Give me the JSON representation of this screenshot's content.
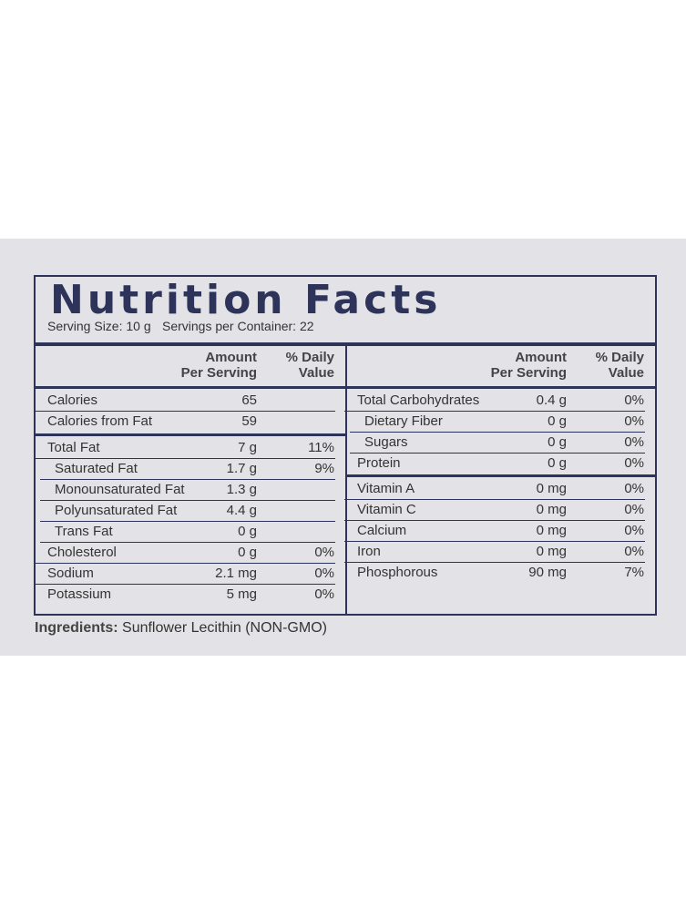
{
  "header": {
    "title": "Nutrition Facts",
    "serving_size": "Serving Size: 10 g",
    "servings_per_container": "Servings per Container: 22"
  },
  "column_headers": {
    "amount": [
      "Amount",
      "Per Serving"
    ],
    "daily_value": [
      "% Daily",
      "Value"
    ]
  },
  "left_sections": [
    [
      {
        "name": "Calories",
        "amount": "65"
      },
      {
        "name": "Calories from Fat",
        "amount": "59"
      }
    ],
    [
      {
        "name": "Total Fat",
        "amount": "7 g",
        "daily_value": "11%",
        "sub_rows": [
          {
            "name": "Saturated Fat",
            "amount": "1.7 g",
            "daily_value": "9%"
          },
          {
            "name": "Monounsaturated Fat",
            "amount": "1.3 g"
          },
          {
            "name": "Polyunsaturated Fat",
            "amount": "4.4 g"
          },
          {
            "name": "Trans Fat",
            "amount": "0 g"
          }
        ]
      },
      {
        "name": "Cholesterol",
        "amount": "0 g",
        "daily_value": "0%"
      },
      {
        "name": "Sodium",
        "amount": "2.1 mg",
        "daily_value": "0%"
      },
      {
        "name": "Potassium",
        "amount": "5 mg",
        "daily_value": "0%"
      }
    ]
  ],
  "right_sections": [
    [
      {
        "name": "Total Carbohydrates",
        "amount": "0.4 g",
        "daily_value": "0%",
        "sub_rows": [
          {
            "name": "Dietary Fiber",
            "amount": "0 g",
            "daily_value": "0%"
          },
          {
            "name": "Sugars",
            "amount": "0 g",
            "daily_value": "0%"
          }
        ]
      },
      {
        "name": "Protein",
        "amount": "0 g",
        "daily_value": "0%"
      }
    ],
    [
      {
        "name": "Vitamin A",
        "amount": "0 mg",
        "daily_value": "0%"
      },
      {
        "name": "Vitamin C",
        "amount": "0 mg",
        "daily_value": "0%"
      },
      {
        "name": "Calcium",
        "amount": "0 mg",
        "daily_value": "0%"
      },
      {
        "name": "Iron",
        "amount": "0 mg",
        "daily_value": "0%"
      },
      {
        "name": "Phosphorous",
        "amount": "90 mg",
        "daily_value": "7%"
      }
    ]
  ],
  "ingredients": {
    "label": "Ingredients:",
    "text": "Sunflower Lecithin (NON-GMO)"
  }
}
